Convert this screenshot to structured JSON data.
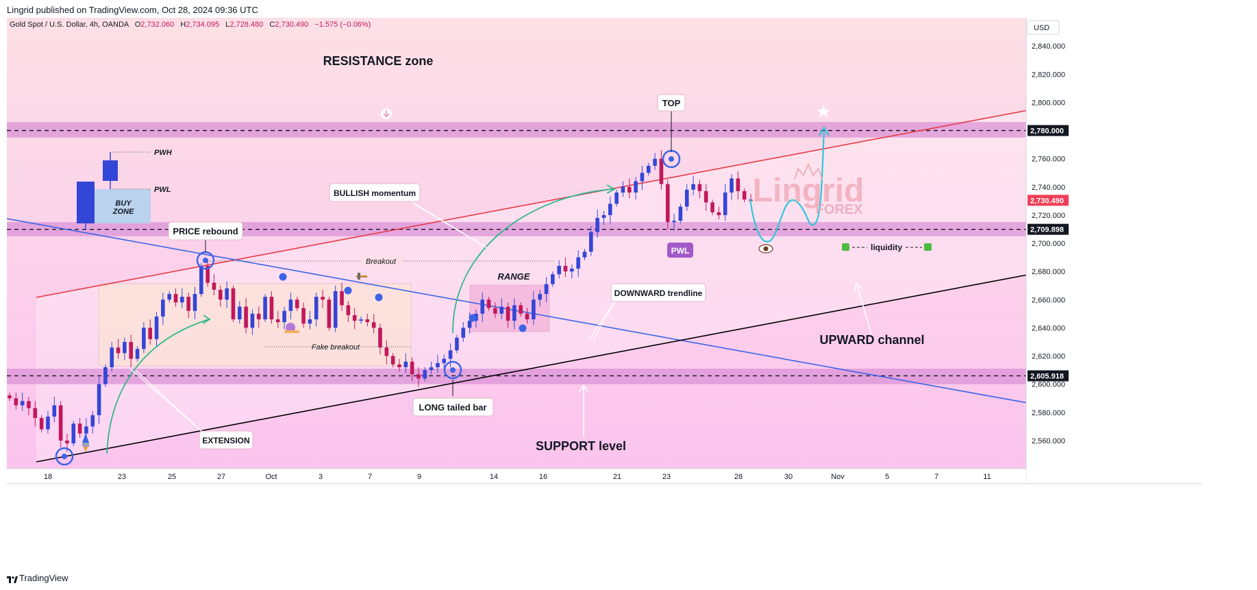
{
  "header": {
    "published": "Lingrid published on TradingView.com, Oct 28, 2024 09:36 UTC"
  },
  "symbol_bar": {
    "name": "Gold Spot / U.S. Dollar, 4h, OANDA",
    "o_label": "O",
    "o": "2,732.060",
    "h_label": "H",
    "h": "2,734.095",
    "l_label": "L",
    "l": "2,728.480",
    "c_label": "C",
    "c": "2,730.490",
    "change": "−1.575 (−0.06%)"
  },
  "currency": "USD",
  "footer": {
    "brand": "TradingView"
  },
  "colors": {
    "up": "#3446d6",
    "down": "#c2185b",
    "resistance_line": "#e53945",
    "trend_down": "#3b64e6",
    "channel_bottom": "#000000",
    "zone": "#d98fd6",
    "last_price": "#ef3f58"
  },
  "chart_data": {
    "type": "candlestick",
    "symbol": "XAUUSD",
    "timeframe": "4h",
    "ylim": [
      2540,
      2860
    ],
    "y_ticks": [
      2560,
      2580,
      2600,
      2620,
      2640,
      2660,
      2680,
      2700,
      2720,
      2740,
      2760,
      2780,
      2800,
      2820,
      2840
    ],
    "x_ticks": [
      "18",
      "23",
      "25",
      "27",
      "Oct",
      "3",
      "7",
      "9",
      "14",
      "16",
      "21",
      "23",
      "28",
      "30",
      "Nov",
      "5",
      "7",
      "11"
    ],
    "price_levels": [
      {
        "label": "2,780.000",
        "value": 2780
      },
      {
        "label": "2,709.898",
        "value": 2709.898
      },
      {
        "label": "2,605.918",
        "value": 2605.918
      }
    ],
    "last_price": {
      "label": "2,730.490",
      "value": 2730.49
    },
    "zones": [
      {
        "name": "resistance",
        "from": 2775,
        "to": 2786
      },
      {
        "name": "mid",
        "from": 2705,
        "to": 2715
      },
      {
        "name": "support",
        "from": 2600,
        "to": 2611
      }
    ],
    "closes": [
      2590,
      2585,
      2588,
      2583,
      2576,
      2568,
      2577,
      2585,
      2560,
      2558,
      2572,
      2565,
      2570,
      2578,
      2600,
      2612,
      2626,
      2622,
      2630,
      2618,
      2625,
      2640,
      2632,
      2648,
      2660,
      2664,
      2658,
      2662,
      2652,
      2664,
      2684,
      2672,
      2667,
      2660,
      2668,
      2646,
      2655,
      2640,
      2650,
      2646,
      2662,
      2646,
      2644,
      2652,
      2660,
      2654,
      2643,
      2646,
      2662,
      2660,
      2640,
      2666,
      2656,
      2649,
      2645,
      2646,
      2644,
      2640,
      2626,
      2620,
      2614,
      2612,
      2616,
      2607,
      2604,
      2610,
      2612,
      2615,
      2618,
      2624,
      2633,
      2640,
      2645,
      2650,
      2660,
      2654,
      2650,
      2655,
      2645,
      2656,
      2650,
      2646,
      2660,
      2664,
      2671,
      2678,
      2684,
      2680,
      2682,
      2690,
      2694,
      2708,
      2718,
      2720,
      2728,
      2736,
      2740,
      2736,
      2744,
      2750,
      2755,
      2760,
      2742,
      2715,
      2716,
      2726,
      2738,
      2742,
      2737,
      2729,
      2722,
      2720,
      2736,
      2746,
      2737,
      2731,
      2730
    ]
  },
  "annotations": {
    "resistance_zone": "RESISTANCE zone",
    "support_level": "SUPPORT level",
    "upward_channel": "UPWARD channel",
    "downward_trendline": "DOWNWARD trendline",
    "bullish_momentum": "BULLISH momentum",
    "price_rebound": "PRICE rebound",
    "extension": "EXTENSION",
    "long_tailed_bar": "LONG tailed bar",
    "top": "TOP",
    "pwl_badge": "PWL",
    "range": "RANGE",
    "breakout": "Breakout",
    "fake_breakout": "Fake breakout",
    "liquidity": "liquidity",
    "pwh_legend": "PWH",
    "pwl_legend": "PWL",
    "buy_zone_1": "BUY",
    "buy_zone_2": "ZONE",
    "watermark_1": "Lingrid",
    "watermark_2": "FOREX"
  }
}
